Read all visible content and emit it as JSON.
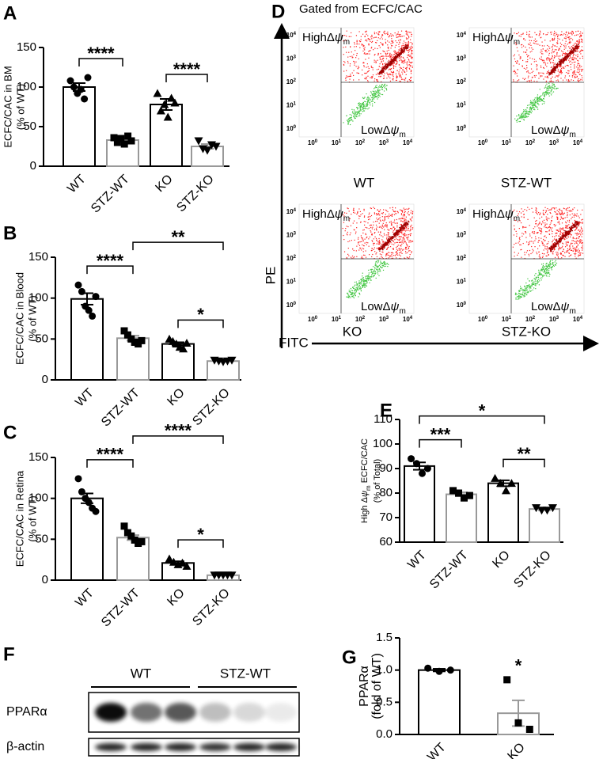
{
  "chart_data": [
    {
      "type": "bar",
      "panel": "A",
      "ylabel": "ECFC/CAC in BM",
      "ylabel2": "(% of WT)",
      "categories": [
        "WT",
        "STZ-WT",
        "KO",
        "STZ-KO"
      ],
      "values": [
        100,
        33,
        78,
        25
      ],
      "errors": [
        5,
        2,
        7,
        3
      ],
      "points": [
        [
          108,
          100,
          92,
          97,
          85,
          112
        ],
        [
          36,
          30,
          35,
          28,
          38,
          32
        ],
        [
          92,
          70,
          78,
          62,
          86,
          80
        ],
        [
          32,
          22,
          20,
          27,
          25
        ]
      ],
      "colors": [
        "#000000",
        "#999999",
        "#000000",
        "#999999"
      ],
      "markers": [
        "circle",
        "square",
        "triangle-up",
        "triangle-down"
      ],
      "ylim": [
        0,
        150
      ],
      "yticks": [
        0,
        50,
        100,
        150
      ],
      "comparisons": [
        {
          "between": [
            "WT",
            "STZ-WT"
          ],
          "label": "****"
        },
        {
          "between": [
            "KO",
            "STZ-KO"
          ],
          "label": "****"
        }
      ]
    },
    {
      "type": "bar",
      "panel": "B",
      "ylabel": "ECFC/CAC in Blood",
      "ylabel2": "(% of WT)",
      "categories": [
        "WT",
        "STZ-WT",
        "KO",
        "STZ-KO"
      ],
      "values": [
        99,
        51,
        44,
        23
      ],
      "errors": [
        7,
        3,
        2,
        1
      ],
      "points": [
        [
          116,
          108,
          90,
          85,
          78,
          102
        ],
        [
          60,
          55,
          50,
          46,
          44,
          48
        ],
        [
          50,
          47,
          44,
          40,
          38,
          45
        ],
        [
          24,
          23,
          22,
          23,
          24
        ]
      ],
      "colors": [
        "#000000",
        "#999999",
        "#000000",
        "#999999"
      ],
      "markers": [
        "circle",
        "square",
        "triangle-up",
        "triangle-down"
      ],
      "ylim": [
        0,
        150
      ],
      "yticks": [
        0,
        50,
        100,
        150
      ],
      "comparisons": [
        {
          "between": [
            "WT",
            "STZ-WT"
          ],
          "label": "****"
        },
        {
          "between": [
            "KO",
            "STZ-KO"
          ],
          "label": "*"
        },
        {
          "between": [
            "STZ-WT",
            "STZ-KO"
          ],
          "label": "**"
        }
      ]
    },
    {
      "type": "bar",
      "panel": "C",
      "ylabel": "ECFC/CAC in Retina",
      "ylabel2": "(% of WT)",
      "categories": [
        "WT",
        "STZ-WT",
        "KO",
        "STZ-KO"
      ],
      "values": [
        100,
        52,
        21,
        6
      ],
      "errors": [
        6,
        3,
        2,
        0.5
      ],
      "points": [
        [
          124,
          108,
          100,
          95,
          88,
          84
        ],
        [
          66,
          58,
          54,
          49,
          45,
          47
        ],
        [
          26,
          22,
          19,
          21,
          17
        ],
        [
          6,
          6,
          6,
          6,
          6
        ]
      ],
      "colors": [
        "#000000",
        "#999999",
        "#000000",
        "#999999"
      ],
      "markers": [
        "circle",
        "square",
        "triangle-up",
        "triangle-down"
      ],
      "ylim": [
        0,
        150
      ],
      "yticks": [
        0,
        50,
        100,
        150
      ],
      "comparisons": [
        {
          "between": [
            "WT",
            "STZ-WT"
          ],
          "label": "****"
        },
        {
          "between": [
            "KO",
            "STZ-KO"
          ],
          "label": "*"
        },
        {
          "between": [
            "STZ-WT",
            "STZ-KO"
          ],
          "label": "****"
        }
      ]
    },
    {
      "type": "bar",
      "panel": "E",
      "ylabel": [
        {
          "text": "High Δ"
        },
        {
          "text": "ψ",
          "italic": true
        },
        {
          "text": "m",
          "sub": true
        },
        {
          "text": " ECFC/CAC"
        }
      ],
      "ylabel2": "(% of Total)",
      "categories": [
        "WT",
        "STZ-WT",
        "KO",
        "STZ-KO"
      ],
      "values": [
        91,
        79.5,
        84,
        73.5
      ],
      "errors": [
        1.5,
        0.8,
        1.2,
        0.5
      ],
      "points": [
        [
          94,
          92,
          88,
          90
        ],
        [
          81,
          80,
          78,
          79
        ],
        [
          86,
          84,
          81,
          84
        ],
        [
          74,
          73,
          73,
          74
        ]
      ],
      "colors": [
        "#000000",
        "#999999",
        "#000000",
        "#999999"
      ],
      "markers": [
        "circle",
        "square",
        "triangle-up",
        "triangle-down"
      ],
      "ylim": [
        60,
        110
      ],
      "yticks": [
        60,
        70,
        80,
        90,
        100,
        110
      ],
      "comparisons": [
        {
          "between": [
            "WT",
            "STZ-WT"
          ],
          "label": "***"
        },
        {
          "between": [
            "KO",
            "STZ-KO"
          ],
          "label": "**"
        },
        {
          "between": [
            "WT",
            "STZ-KO"
          ],
          "label": "*"
        }
      ]
    },
    {
      "type": "bar",
      "panel": "G",
      "ylabel": "PPARα",
      "ylabel2": "(fold of WT)",
      "categories": [
        "WT",
        "KO"
      ],
      "values": [
        1.0,
        0.33
      ],
      "errors": [
        0.02,
        0.2
      ],
      "points": [
        [
          1.03,
          0.98,
          1.0
        ],
        [
          0.85,
          0.18,
          0.08
        ]
      ],
      "colors": [
        "#000000",
        "#999999"
      ],
      "markers": [
        "circle",
        "square"
      ],
      "ylim": [
        0,
        1.5
      ],
      "yticks": [
        {
          "value": 0,
          "label": "0.0"
        },
        {
          "value": 0.5,
          "label": "0.5"
        },
        {
          "value": 1,
          "label": "1.0"
        },
        {
          "value": 1.5,
          "label": "1.5"
        }
      ],
      "comparisons": [
        {
          "between": [
            "KO"
          ],
          "label": "*"
        }
      ]
    }
  ],
  "flow_cytometry": {
    "panel": "D",
    "title": "Gated from ECFC/CAC",
    "y_axis_label": "PE",
    "x_axis_label": "FITC",
    "high_label": [
      "HighΔ",
      "ψ",
      "m"
    ],
    "low_label": [
      "LowΔ",
      "ψ",
      "m"
    ],
    "tick_base": "10",
    "tick_exponents": [
      "0",
      "1",
      "2",
      "3",
      "4"
    ],
    "plots": [
      "WT",
      "STZ-WT",
      "KO",
      "STZ-KO"
    ]
  },
  "western_blot": {
    "panel": "F",
    "groups": [
      "WT",
      "STZ-WT"
    ],
    "rows": [
      "PPARα",
      "β-actin"
    ]
  }
}
